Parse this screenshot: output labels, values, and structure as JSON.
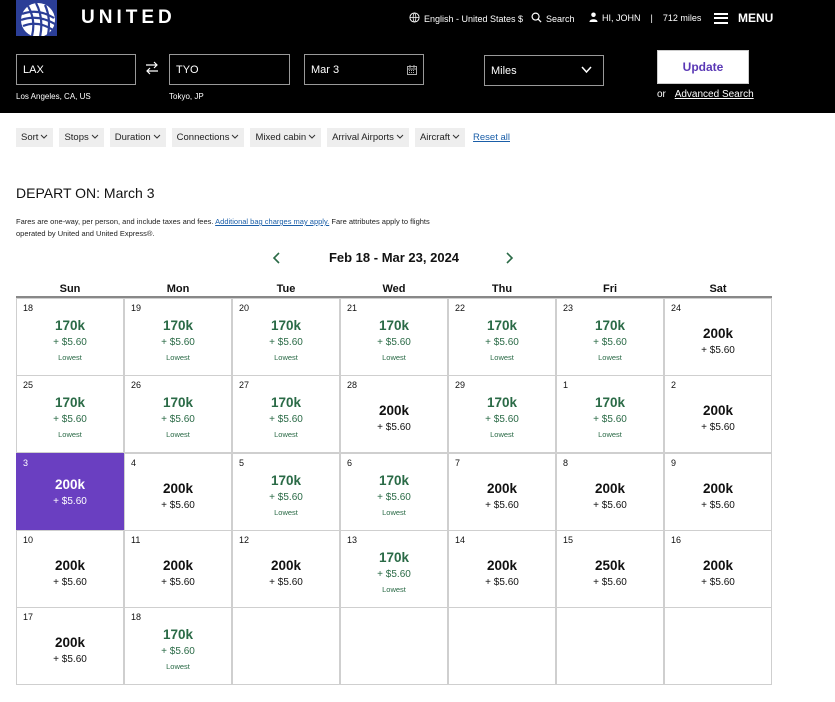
{
  "header": {
    "brand": "UNITED",
    "language": "English - United States $",
    "search_label": "Search",
    "greeting": "HI, JOHN",
    "miles": "712 miles",
    "menu_label": "MENU"
  },
  "search_form": {
    "origin": "LAX",
    "origin_city": "Los Angeles, CA, US",
    "destination": "TYO",
    "destination_city": "Tokyo, JP",
    "date": "Mar 3",
    "fare_type": "Miles",
    "update_label": "Update",
    "or_label": "or",
    "advanced_search": "Advanced Search"
  },
  "filters": {
    "items": [
      "Sort",
      "Stops",
      "Duration",
      "Connections",
      "Mixed cabin",
      "Arrival Airports",
      "Aircraft"
    ],
    "reset_label": "Reset all"
  },
  "depart_on": "DEPART ON: March 3",
  "notes": {
    "line1a": "Fares are one-way, per person, and include taxes and fees.",
    "link": "Additional bag charges may apply.",
    "line1b": "Fare attributes apply to flights",
    "line2": "operated by United and United Express®."
  },
  "calendar": {
    "range": "Feb 18 - Mar 23, 2024",
    "weekdays": [
      "Sun",
      "Mon",
      "Tue",
      "Wed",
      "Thu",
      "Fri",
      "Sat"
    ],
    "lowest_label": "Lowest",
    "accent_color": "#2a6a46",
    "selected_color": "#6a3fc1",
    "selected_day": "3",
    "weeks": [
      [
        {
          "day": "18",
          "price": "170k",
          "tax": "+ $5.60",
          "lowest": true
        },
        {
          "day": "19",
          "price": "170k",
          "tax": "+ $5.60",
          "lowest": true
        },
        {
          "day": "20",
          "price": "170k",
          "tax": "+ $5.60",
          "lowest": true
        },
        {
          "day": "21",
          "price": "170k",
          "tax": "+ $5.60",
          "lowest": true
        },
        {
          "day": "22",
          "price": "170k",
          "tax": "+ $5.60",
          "lowest": true
        },
        {
          "day": "23",
          "price": "170k",
          "tax": "+ $5.60",
          "lowest": true
        },
        {
          "day": "24",
          "price": "200k",
          "tax": "+ $5.60",
          "lowest": false
        }
      ],
      [
        {
          "day": "25",
          "price": "170k",
          "tax": "+ $5.60",
          "lowest": true
        },
        {
          "day": "26",
          "price": "170k",
          "tax": "+ $5.60",
          "lowest": true
        },
        {
          "day": "27",
          "price": "170k",
          "tax": "+ $5.60",
          "lowest": true
        },
        {
          "day": "28",
          "price": "200k",
          "tax": "+ $5.60",
          "lowest": false
        },
        {
          "day": "29",
          "price": "170k",
          "tax": "+ $5.60",
          "lowest": true
        },
        {
          "day": "1",
          "price": "170k",
          "tax": "+ $5.60",
          "lowest": true
        },
        {
          "day": "2",
          "price": "200k",
          "tax": "+ $5.60",
          "lowest": false
        }
      ],
      [
        {
          "day": "3",
          "price": "200k",
          "tax": "+ $5.60",
          "lowest": false,
          "selected": true
        },
        {
          "day": "4",
          "price": "200k",
          "tax": "+ $5.60",
          "lowest": false
        },
        {
          "day": "5",
          "price": "170k",
          "tax": "+ $5.60",
          "lowest": true
        },
        {
          "day": "6",
          "price": "170k",
          "tax": "+ $5.60",
          "lowest": true
        },
        {
          "day": "7",
          "price": "200k",
          "tax": "+ $5.60",
          "lowest": false
        },
        {
          "day": "8",
          "price": "200k",
          "tax": "+ $5.60",
          "lowest": false
        },
        {
          "day": "9",
          "price": "200k",
          "tax": "+ $5.60",
          "lowest": false
        }
      ],
      [
        {
          "day": "10",
          "price": "200k",
          "tax": "+ $5.60",
          "lowest": false
        },
        {
          "day": "11",
          "price": "200k",
          "tax": "+ $5.60",
          "lowest": false
        },
        {
          "day": "12",
          "price": "200k",
          "tax": "+ $5.60",
          "lowest": false
        },
        {
          "day": "13",
          "price": "170k",
          "tax": "+ $5.60",
          "lowest": true
        },
        {
          "day": "14",
          "price": "200k",
          "tax": "+ $5.60",
          "lowest": false
        },
        {
          "day": "15",
          "price": "250k",
          "tax": "+ $5.60",
          "lowest": false
        },
        {
          "day": "16",
          "price": "200k",
          "tax": "+ $5.60",
          "lowest": false
        }
      ],
      [
        {
          "day": "17",
          "price": "200k",
          "tax": "+ $5.60",
          "lowest": false
        },
        {
          "day": "18",
          "price": "170k",
          "tax": "+ $5.60",
          "lowest": true
        },
        null,
        null,
        null,
        null,
        null
      ]
    ]
  }
}
